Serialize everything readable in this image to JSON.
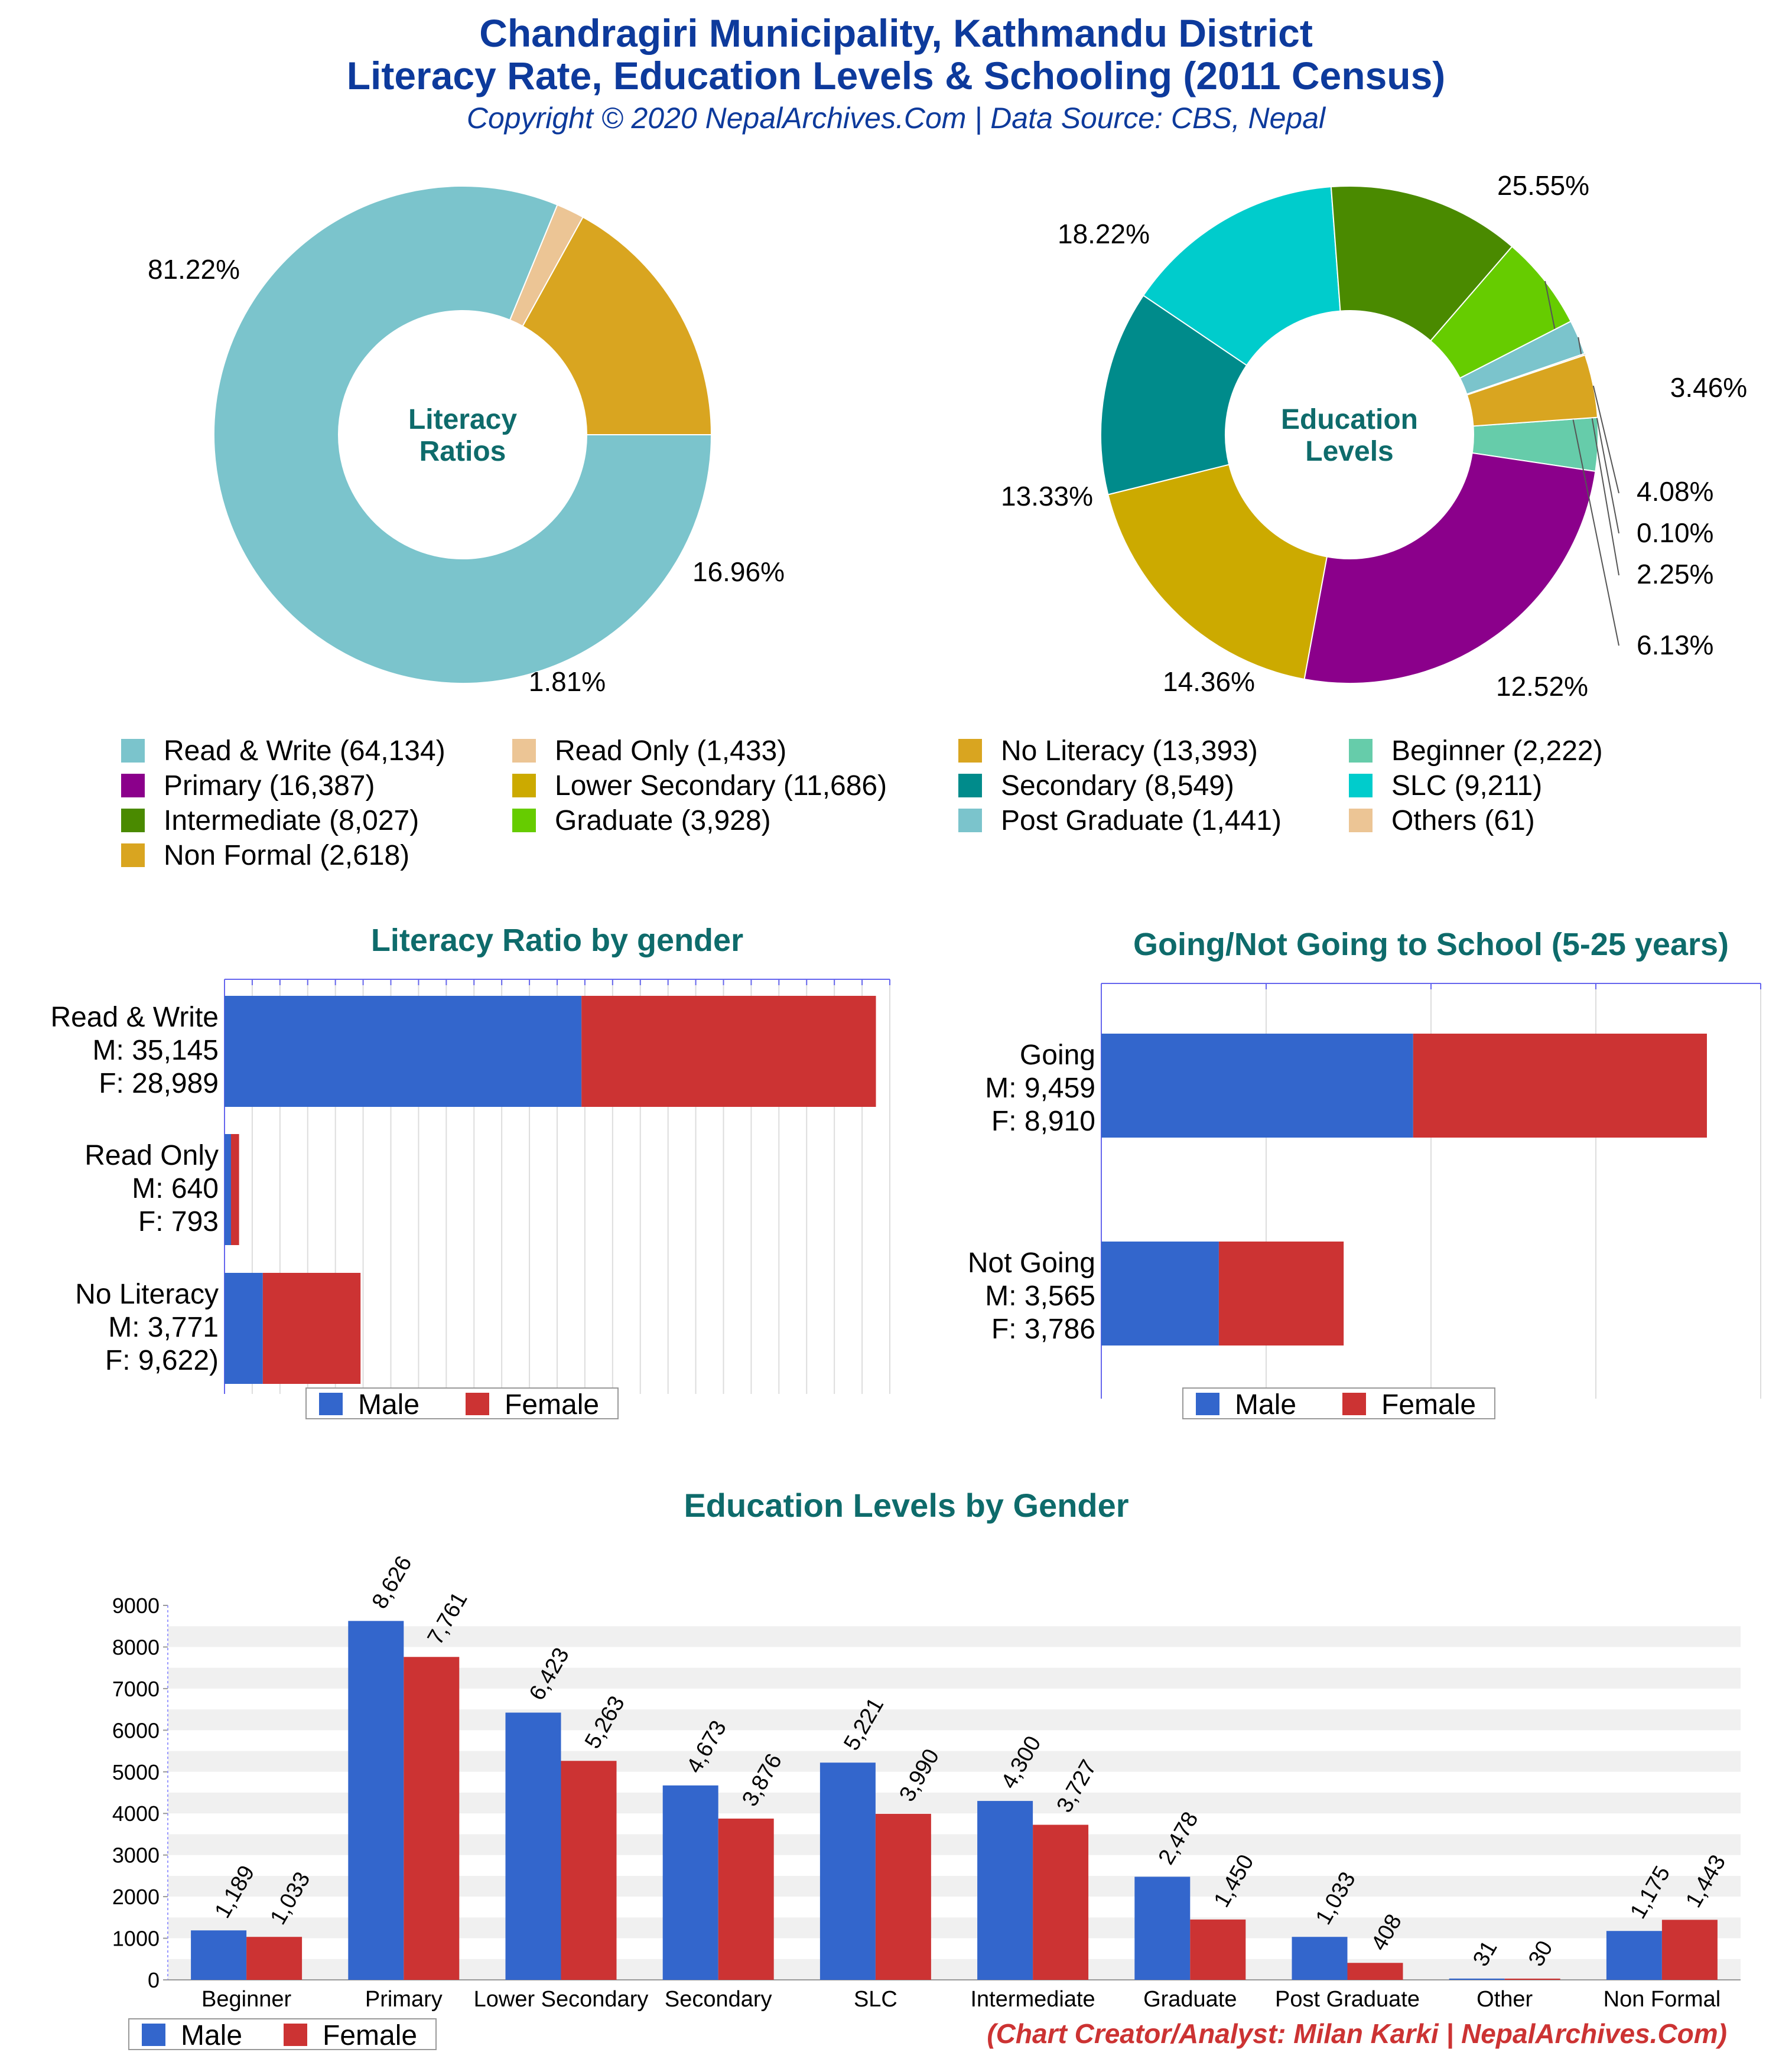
{
  "header": {
    "title_line1": "Chandragiri Municipality, Kathmandu District",
    "title_line2": "Literacy Rate, Education Levels & Schooling (2011 Census)",
    "copyright": "Copyright © 2020 NepalArchives.Com | Data Source: CBS, Nepal"
  },
  "footer": {
    "credit": "(Chart Creator/Analyst: Milan Karki | NepalArchives.Com)"
  },
  "colors": {
    "title": "#0d3a9c",
    "subtitle": "#0e6b6b",
    "male": "#3366cc",
    "female": "#cc3333",
    "credit": "#cc3333"
  },
  "chart_data": [
    {
      "id": "literacy_donut",
      "type": "pie",
      "title": "Literacy Ratios",
      "slices": [
        {
          "label": "Read & Write",
          "value": 64134,
          "percent_label": "81.22%",
          "color": "#7bc4cc"
        },
        {
          "label": "Read Only",
          "value": 1433,
          "percent_label": "1.81%",
          "color": "#ecc595"
        },
        {
          "label": "No Literacy",
          "value": 13393,
          "percent_label": "16.96%",
          "color": "#d9a520"
        }
      ]
    },
    {
      "id": "education_donut",
      "type": "pie",
      "title": "Education Levels",
      "slices": [
        {
          "label": "Beginner",
          "value": 2222,
          "percent_label": "3.46%",
          "color": "#66ccaa"
        },
        {
          "label": "Primary",
          "value": 16387,
          "percent_label": "25.55%",
          "color": "#8b008b"
        },
        {
          "label": "Lower Secondary",
          "value": 11686,
          "percent_label": "18.22%",
          "color": "#ccaa00"
        },
        {
          "label": "Secondary",
          "value": 8549,
          "percent_label": "13.33%",
          "color": "#008b8b"
        },
        {
          "label": "SLC",
          "value": 9211,
          "percent_label": "14.36%",
          "color": "#00cccc"
        },
        {
          "label": "Intermediate",
          "value": 8027,
          "percent_label": "12.52%",
          "color": "#4a8a00"
        },
        {
          "label": "Graduate",
          "value": 3928,
          "percent_label": "6.13%",
          "color": "#66cc00"
        },
        {
          "label": "Post Graduate",
          "value": 1441,
          "percent_label": "2.25%",
          "color": "#7bc4cc"
        },
        {
          "label": "Others",
          "value": 61,
          "percent_label": "0.10%",
          "color": "#ecc595"
        },
        {
          "label": "Non Formal",
          "value": 2618,
          "percent_label": "4.08%",
          "color": "#d9a520"
        }
      ]
    },
    {
      "id": "legend_top",
      "type": "table",
      "entries": [
        {
          "label": "Read & Write (64,134)",
          "color": "#7bc4cc"
        },
        {
          "label": "Read Only (1,433)",
          "color": "#ecc595"
        },
        {
          "label": "No Literacy (13,393)",
          "color": "#d9a520"
        },
        {
          "label": "Beginner (2,222)",
          "color": "#66ccaa"
        },
        {
          "label": "Primary (16,387)",
          "color": "#8b008b"
        },
        {
          "label": "Lower Secondary (11,686)",
          "color": "#ccaa00"
        },
        {
          "label": "Secondary (8,549)",
          "color": "#008b8b"
        },
        {
          "label": "SLC (9,211)",
          "color": "#00cccc"
        },
        {
          "label": "Intermediate (8,027)",
          "color": "#4a8a00"
        },
        {
          "label": "Graduate (3,928)",
          "color": "#66cc00"
        },
        {
          "label": "Post Graduate (1,441)",
          "color": "#7bc4cc"
        },
        {
          "label": "Others (61)",
          "color": "#ecc595"
        },
        {
          "label": "Non Formal (2,618)",
          "color": "#d9a520"
        }
      ]
    },
    {
      "id": "literacy_gender",
      "type": "bar",
      "title": "Literacy Ratio by gender",
      "orientation": "horizontal",
      "stacked": true,
      "categories": [
        [
          "Read & Write",
          "M: 35,145",
          "F: 28,989"
        ],
        [
          "Read Only",
          "M: 640",
          "F: 793"
        ],
        [
          "No Literacy",
          "M: 3,771",
          "F: 9,622)"
        ]
      ],
      "series": [
        {
          "name": "Male",
          "values": [
            35145,
            640,
            3771
          ]
        },
        {
          "name": "Female",
          "values": [
            28989,
            793,
            9622
          ]
        }
      ],
      "xlim": [
        0,
        65500
      ],
      "grid": true,
      "legend": "bottom"
    },
    {
      "id": "school_gender",
      "type": "bar",
      "title": "Going/Not Going to School (5-25 years)",
      "orientation": "horizontal",
      "stacked": true,
      "categories": [
        [
          "Going",
          "M: 9,459",
          "F: 8,910"
        ],
        [
          "Not Going",
          "M: 3,565",
          "F: 3,786"
        ]
      ],
      "series": [
        {
          "name": "Male",
          "values": [
            9459,
            3565
          ]
        },
        {
          "name": "Female",
          "values": [
            8910,
            3786
          ]
        }
      ],
      "xlim": [
        0,
        20000
      ],
      "grid": true,
      "legend": "bottom"
    },
    {
      "id": "education_gender",
      "type": "bar",
      "title": "Education Levels by Gender",
      "categories": [
        "Beginner",
        "Primary",
        "Lower Secondary",
        "Secondary",
        "SLC",
        "Intermediate",
        "Graduate",
        "Post Graduate",
        "Other",
        "Non Formal"
      ],
      "series": [
        {
          "name": "Male",
          "values": [
            1189,
            8626,
            6423,
            4673,
            5221,
            4300,
            2478,
            1033,
            31,
            1175
          ],
          "labels": [
            "1,189",
            "8,626",
            "6,423",
            "4,673",
            "5,221",
            "4,300",
            "2,478",
            "1,033",
            "31",
            "1,175"
          ]
        },
        {
          "name": "Female",
          "values": [
            1033,
            7761,
            5263,
            3876,
            3990,
            3727,
            1450,
            408,
            30,
            1443
          ],
          "labels": [
            "1,033",
            "7,761",
            "5,263",
            "3,876",
            "3,990",
            "3,727",
            "1,450",
            "408",
            "30",
            "1,443"
          ]
        }
      ],
      "yticks": [
        "0",
        "1000",
        "2000",
        "3000",
        "4000",
        "5000",
        "6000",
        "7000",
        "8000",
        "9000"
      ],
      "ylim": [
        0,
        9000
      ],
      "grid": true,
      "legend": "bottom-left"
    }
  ]
}
